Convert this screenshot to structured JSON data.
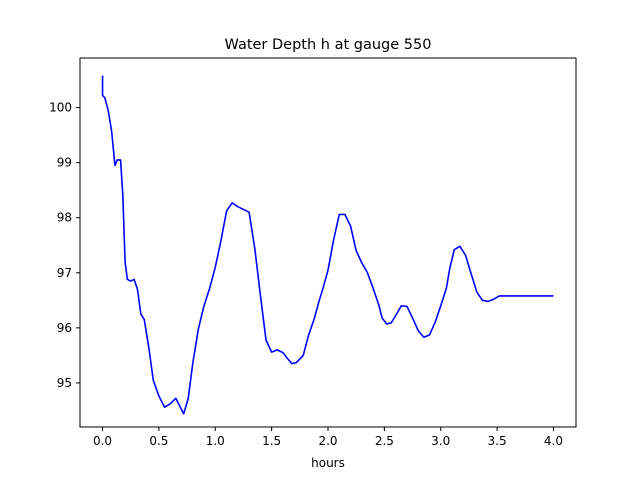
{
  "chart_data": {
    "type": "line",
    "title": "Water Depth h at gauge 550",
    "xlabel": "hours",
    "ylabel": "",
    "xlim": [
      -0.2,
      4.2
    ],
    "ylim": [
      94.2,
      100.9
    ],
    "xticks": [
      0.0,
      0.5,
      1.0,
      1.5,
      2.0,
      2.5,
      3.0,
      3.5,
      4.0
    ],
    "xtick_labels": [
      "0.0",
      "0.5",
      "1.0",
      "1.5",
      "2.0",
      "2.5",
      "3.0",
      "3.5",
      "4.0"
    ],
    "yticks": [
      95,
      96,
      97,
      98,
      99,
      100
    ],
    "ytick_labels": [
      "95",
      "96",
      "97",
      "98",
      "99",
      "100"
    ],
    "grid": false,
    "series": [
      {
        "color": "#0000ff",
        "x": [
          0.0,
          0.0,
          0.0,
          0.02,
          0.05,
          0.08,
          0.11,
          0.13,
          0.16,
          0.18,
          0.2,
          0.22,
          0.25,
          0.28,
          0.31,
          0.34,
          0.37,
          0.41,
          0.45,
          0.5,
          0.55,
          0.6,
          0.65,
          0.68,
          0.72,
          0.76,
          0.8,
          0.85,
          0.9,
          0.95,
          1.0,
          1.05,
          1.1,
          1.15,
          1.2,
          1.25,
          1.3,
          1.35,
          1.4,
          1.45,
          1.5,
          1.55,
          1.6,
          1.65,
          1.68,
          1.72,
          1.78,
          1.83,
          1.88,
          1.92,
          1.96,
          2.0,
          2.05,
          2.1,
          2.15,
          2.2,
          2.25,
          2.3,
          2.35,
          2.4,
          2.45,
          2.48,
          2.52,
          2.56,
          2.6,
          2.65,
          2.7,
          2.75,
          2.8,
          2.85,
          2.9,
          2.95,
          3.0,
          3.05,
          3.08,
          3.12,
          3.17,
          3.22,
          3.27,
          3.32,
          3.37,
          3.42,
          3.47,
          3.52,
          3.57,
          3.62,
          3.66,
          3.7,
          3.74,
          3.78,
          3.82,
          3.86,
          3.9,
          3.95,
          4.0
        ],
        "y": [
          100.58,
          100.42,
          100.22,
          100.18,
          99.95,
          99.58,
          98.95,
          99.05,
          99.05,
          98.4,
          97.2,
          96.88,
          96.85,
          96.88,
          96.7,
          96.25,
          96.15,
          95.65,
          95.05,
          94.76,
          94.56,
          94.62,
          94.72,
          94.6,
          94.44,
          94.72,
          95.35,
          95.98,
          96.4,
          96.72,
          97.1,
          97.58,
          98.12,
          98.27,
          98.2,
          98.15,
          98.1,
          97.45,
          96.6,
          95.78,
          95.56,
          95.6,
          95.55,
          95.42,
          95.35,
          95.37,
          95.5,
          95.88,
          96.18,
          96.48,
          96.75,
          97.05,
          97.6,
          98.06,
          98.06,
          97.85,
          97.4,
          97.18,
          97.0,
          96.72,
          96.42,
          96.18,
          96.07,
          96.09,
          96.22,
          96.4,
          96.39,
          96.18,
          95.95,
          95.83,
          95.87,
          96.1,
          96.4,
          96.72,
          97.08,
          97.42,
          97.48,
          97.32,
          96.98,
          96.65,
          96.5,
          96.48,
          96.52,
          96.58,
          96.58,
          96.58,
          96.58,
          96.58,
          96.58,
          96.58,
          96.58,
          96.58,
          96.58,
          96.58,
          96.58
        ]
      }
    ]
  }
}
